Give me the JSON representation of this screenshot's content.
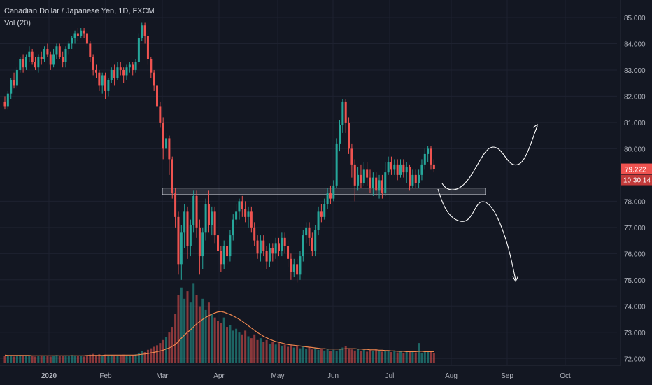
{
  "legend": {
    "symbol_title": "Canadian Dollar / Japanese Yen, 1D, FXCM",
    "volume_label": "Vol (20)"
  },
  "colors": {
    "background": "#131722",
    "up": "#26a69a",
    "down": "#ef5350",
    "volume_ma": "#f0874f",
    "last_price": "#ef5350",
    "grid": "#1e2230",
    "axis_text": "#b2b5be",
    "annotation": "#ffffff"
  },
  "chart_data": {
    "type": "candlestick",
    "x_ticks": [
      "2020",
      "Feb",
      "Mar",
      "Apr",
      "May",
      "Jun",
      "Jul",
      "Aug",
      "Sep",
      "Oct"
    ],
    "y_ticks": [
      "85.000",
      "84.000",
      "83.000",
      "82.000",
      "81.000",
      "80.000",
      "78.000",
      "77.000",
      "76.000",
      "75.000",
      "74.000",
      "73.000",
      "72.000"
    ],
    "ylim": [
      71.9,
      85.4
    ],
    "last_price": "79.222",
    "countdown": "10:30:14",
    "grid": true,
    "support_zone": {
      "low": 78.25,
      "high": 78.5,
      "from": "Mar",
      "to": "Aug"
    },
    "candles": [
      [
        81.8,
        81.6,
        82.0,
        81.5
      ],
      [
        81.6,
        82.1,
        82.2,
        81.5
      ],
      [
        82.1,
        82.6,
        82.7,
        81.9
      ],
      [
        82.6,
        82.4,
        82.9,
        82.3
      ],
      [
        82.4,
        83.0,
        83.1,
        82.3
      ],
      [
        83.0,
        83.4,
        83.5,
        82.9
      ],
      [
        83.4,
        83.1,
        83.6,
        82.9
      ],
      [
        83.1,
        83.5,
        83.6,
        83.0
      ],
      [
        83.5,
        83.7,
        83.9,
        83.3
      ],
      [
        83.7,
        83.3,
        83.8,
        83.2
      ],
      [
        83.3,
        83.1,
        83.5,
        83.0
      ],
      [
        83.1,
        83.5,
        83.6,
        82.9
      ],
      [
        83.5,
        83.4,
        83.7,
        83.2
      ],
      [
        83.4,
        83.8,
        83.9,
        83.3
      ],
      [
        83.8,
        83.6,
        84.0,
        83.5
      ],
      [
        83.6,
        83.2,
        83.7,
        83.0
      ],
      [
        83.2,
        83.6,
        83.8,
        83.1
      ],
      [
        83.6,
        83.9,
        84.0,
        83.4
      ],
      [
        83.9,
        83.5,
        84.0,
        83.4
      ],
      [
        83.5,
        83.3,
        83.7,
        83.1
      ],
      [
        83.3,
        83.8,
        83.9,
        83.1
      ],
      [
        83.8,
        84.0,
        84.1,
        83.6
      ],
      [
        84.0,
        84.2,
        84.3,
        83.8
      ],
      [
        84.2,
        84.4,
        84.5,
        84.0
      ],
      [
        84.4,
        84.3,
        84.6,
        84.1
      ],
      [
        84.3,
        84.5,
        84.6,
        84.2
      ],
      [
        84.5,
        84.4,
        84.6,
        84.2
      ],
      [
        84.4,
        84.0,
        84.5,
        83.9
      ],
      [
        84.0,
        83.5,
        84.1,
        83.3
      ],
      [
        83.5,
        83.0,
        83.6,
        82.8
      ],
      [
        83.0,
        82.9,
        83.2,
        82.7
      ],
      [
        82.9,
        82.4,
        83.0,
        82.2
      ],
      [
        82.4,
        82.8,
        82.9,
        82.1
      ],
      [
        82.8,
        82.2,
        82.9,
        81.9
      ],
      [
        82.2,
        82.6,
        82.7,
        82.0
      ],
      [
        82.6,
        83.0,
        83.1,
        82.5
      ],
      [
        83.0,
        82.7,
        83.2,
        82.4
      ],
      [
        82.7,
        83.1,
        83.3,
        82.6
      ],
      [
        83.1,
        83.0,
        83.3,
        82.8
      ],
      [
        83.0,
        82.8,
        83.1,
        82.5
      ],
      [
        82.8,
        83.1,
        83.2,
        82.6
      ],
      [
        83.1,
        83.2,
        83.3,
        82.9
      ],
      [
        83.2,
        83.0,
        83.3,
        82.8
      ],
      [
        83.0,
        83.3,
        83.4,
        82.9
      ],
      [
        83.3,
        84.2,
        84.4,
        83.2
      ],
      [
        84.2,
        84.7,
        84.8,
        84.1
      ],
      [
        84.7,
        84.3,
        84.8,
        84.0
      ],
      [
        84.3,
        83.4,
        84.4,
        83.2
      ],
      [
        83.4,
        82.9,
        83.5,
        82.7
      ],
      [
        82.9,
        82.4,
        83.0,
        82.2
      ],
      [
        82.4,
        81.6,
        82.5,
        81.4
      ],
      [
        81.6,
        81.0,
        81.8,
        80.8
      ],
      [
        81.0,
        80.0,
        81.2,
        79.6
      ],
      [
        80.0,
        80.4,
        80.6,
        79.7
      ],
      [
        80.4,
        79.6,
        80.5,
        79.0
      ],
      [
        79.6,
        78.3,
        79.7,
        78.1
      ],
      [
        78.3,
        77.4,
        78.5,
        77.0
      ],
      [
        77.4,
        75.6,
        77.6,
        75.2
      ],
      [
        75.6,
        76.8,
        77.1,
        75.0
      ],
      [
        76.8,
        77.6,
        77.9,
        76.2
      ],
      [
        77.6,
        76.3,
        77.8,
        75.8
      ],
      [
        76.3,
        77.1,
        77.3,
        75.9
      ],
      [
        77.1,
        78.2,
        78.4,
        76.8
      ],
      [
        78.2,
        77.0,
        78.4,
        76.6
      ],
      [
        77.0,
        75.9,
        77.3,
        75.2
      ],
      [
        75.9,
        76.8,
        77.0,
        75.4
      ],
      [
        76.8,
        77.9,
        78.1,
        76.5
      ],
      [
        77.9,
        77.1,
        78.4,
        76.8
      ],
      [
        77.1,
        77.6,
        77.8,
        76.7
      ],
      [
        77.6,
        76.7,
        77.8,
        76.4
      ],
      [
        76.7,
        76.1,
        76.9,
        75.8
      ],
      [
        76.1,
        75.6,
        76.3,
        75.3
      ],
      [
        75.6,
        76.3,
        76.5,
        75.4
      ],
      [
        76.3,
        75.9,
        76.5,
        75.6
      ],
      [
        75.9,
        76.7,
        76.9,
        75.7
      ],
      [
        76.7,
        77.3,
        77.5,
        76.5
      ],
      [
        77.3,
        77.6,
        77.9,
        77.1
      ],
      [
        77.6,
        78.0,
        78.1,
        77.3
      ],
      [
        78.0,
        77.7,
        78.2,
        77.4
      ],
      [
        77.7,
        77.4,
        78.0,
        77.2
      ],
      [
        77.4,
        77.6,
        77.8,
        77.0
      ],
      [
        77.6,
        77.0,
        77.8,
        76.8
      ],
      [
        77.0,
        76.5,
        77.2,
        76.3
      ],
      [
        76.5,
        76.0,
        76.7,
        75.8
      ],
      [
        76.0,
        76.5,
        76.7,
        75.7
      ],
      [
        76.5,
        76.1,
        76.7,
        75.9
      ],
      [
        76.1,
        75.7,
        76.3,
        75.4
      ],
      [
        75.7,
        76.2,
        76.4,
        75.5
      ],
      [
        76.2,
        76.0,
        76.4,
        75.7
      ],
      [
        76.0,
        76.4,
        76.6,
        75.8
      ],
      [
        76.4,
        76.1,
        76.6,
        75.9
      ],
      [
        76.1,
        76.6,
        76.8,
        75.9
      ],
      [
        76.6,
        76.3,
        76.8,
        76.0
      ],
      [
        76.3,
        75.8,
        76.5,
        75.5
      ],
      [
        75.8,
        75.3,
        76.0,
        75.0
      ],
      [
        75.3,
        75.6,
        75.8,
        75.1
      ],
      [
        75.6,
        75.2,
        75.8,
        74.9
      ],
      [
        75.2,
        75.9,
        76.1,
        75.0
      ],
      [
        75.9,
        76.7,
        76.9,
        75.7
      ],
      [
        76.7,
        77.0,
        77.2,
        76.4
      ],
      [
        77.0,
        76.6,
        77.2,
        76.3
      ],
      [
        76.6,
        76.1,
        76.8,
        75.9
      ],
      [
        76.1,
        76.9,
        77.1,
        75.9
      ],
      [
        76.9,
        77.6,
        77.8,
        76.7
      ],
      [
        77.6,
        77.4,
        77.9,
        77.2
      ],
      [
        77.4,
        77.9,
        78.1,
        77.3
      ],
      [
        77.9,
        78.3,
        78.5,
        77.7
      ],
      [
        78.3,
        78.1,
        78.6,
        77.9
      ],
      [
        78.1,
        78.6,
        78.8,
        78.0
      ],
      [
        78.6,
        80.2,
        80.4,
        78.5
      ],
      [
        80.2,
        80.9,
        81.1,
        79.9
      ],
      [
        80.9,
        81.8,
        81.9,
        80.6
      ],
      [
        81.8,
        81.0,
        81.9,
        80.6
      ],
      [
        81.0,
        80.0,
        81.2,
        79.8
      ],
      [
        80.0,
        79.4,
        80.2,
        78.9
      ],
      [
        79.4,
        78.6,
        79.6,
        78.0
      ],
      [
        78.6,
        79.0,
        79.3,
        78.4
      ],
      [
        79.0,
        78.7,
        79.4,
        78.5
      ],
      [
        78.7,
        79.2,
        79.5,
        78.6
      ],
      [
        79.2,
        78.9,
        79.5,
        78.6
      ],
      [
        78.9,
        78.5,
        79.2,
        78.3
      ],
      [
        78.5,
        78.9,
        79.1,
        78.2
      ],
      [
        78.9,
        78.4,
        79.1,
        78.2
      ],
      [
        78.4,
        78.8,
        79.0,
        78.1
      ],
      [
        78.8,
        78.3,
        79.0,
        78.1
      ],
      [
        78.3,
        79.1,
        79.5,
        78.2
      ],
      [
        79.1,
        79.5,
        79.7,
        79.0
      ],
      [
        79.5,
        79.2,
        79.7,
        79.0
      ],
      [
        79.2,
        79.4,
        79.6,
        79.0
      ],
      [
        79.4,
        79.0,
        79.6,
        78.8
      ],
      [
        79.0,
        79.4,
        79.6,
        78.9
      ],
      [
        79.4,
        79.1,
        79.6,
        78.9
      ],
      [
        79.1,
        79.3,
        79.5,
        78.7
      ],
      [
        79.3,
        78.6,
        79.4,
        78.4
      ],
      [
        78.6,
        79.0,
        79.2,
        78.5
      ],
      [
        79.0,
        78.7,
        79.2,
        78.5
      ],
      [
        78.7,
        79.0,
        79.2,
        78.5
      ],
      [
        79.0,
        79.4,
        79.6,
        78.8
      ],
      [
        79.4,
        79.8,
        80.0,
        79.2
      ],
      [
        79.8,
        80.0,
        80.1,
        79.5
      ],
      [
        80.0,
        79.4,
        80.1,
        79.2
      ],
      [
        79.4,
        79.22,
        79.6,
        79.1
      ]
    ],
    "volume": [
      1.8,
      1.7,
      1.9,
      1.6,
      1.8,
      2.0,
      1.7,
      1.9,
      1.8,
      1.7,
      1.6,
      1.8,
      1.9,
      1.7,
      1.8,
      1.6,
      1.9,
      2.0,
      1.8,
      1.7,
      1.9,
      1.8,
      2.0,
      1.9,
      1.7,
      1.8,
      1.6,
      1.9,
      2.1,
      2.3,
      2.0,
      2.2,
      1.9,
      2.1,
      1.8,
      2.0,
      1.9,
      1.8,
      2.0,
      2.1,
      1.9,
      1.8,
      2.0,
      2.2,
      2.6,
      3.0,
      2.8,
      3.4,
      3.8,
      4.2,
      4.6,
      5.2,
      6.0,
      6.8,
      8.0,
      9.5,
      13.0,
      18.0,
      20.0,
      17.0,
      19.0,
      16.0,
      21.0,
      18.0,
      15.0,
      17.0,
      14.0,
      16.0,
      13.0,
      12.0,
      11.0,
      10.5,
      12.0,
      9.5,
      10.0,
      8.5,
      9.0,
      8.0,
      7.5,
      8.5,
      7.0,
      6.5,
      7.5,
      6.0,
      6.5,
      5.5,
      6.0,
      5.0,
      5.5,
      4.8,
      5.2,
      4.5,
      4.8,
      4.2,
      4.6,
      4.0,
      4.4,
      3.8,
      4.2,
      3.6,
      4.0,
      3.5,
      3.8,
      3.4,
      3.6,
      3.2,
      3.5,
      3.0,
      3.4,
      3.1,
      3.6,
      4.0,
      4.4,
      3.8,
      3.5,
      3.2,
      3.6,
      3.0,
      3.4,
      2.9,
      3.3,
      3.0,
      3.5,
      3.1,
      2.9,
      3.2,
      3.0,
      2.8,
      3.1,
      2.7,
      3.0,
      2.6,
      2.9,
      2.8,
      3.0,
      2.7,
      5.2,
      2.6,
      2.9,
      3.1,
      2.8,
      2.5
    ],
    "volume_ma": [
      2.0,
      1.9,
      1.9,
      1.9,
      1.9,
      1.9,
      1.9,
      1.9,
      1.9,
      1.8,
      1.8,
      1.8,
      1.8,
      1.8,
      1.8,
      1.8,
      1.8,
      1.8,
      1.8,
      1.8,
      1.8,
      1.8,
      1.8,
      1.8,
      1.8,
      1.8,
      1.8,
      1.9,
      1.9,
      1.9,
      1.9,
      1.9,
      1.9,
      2.0,
      2.0,
      2.0,
      2.0,
      2.0,
      2.0,
      2.0,
      2.0,
      2.0,
      2.0,
      2.0,
      2.1,
      2.2,
      2.3,
      2.4,
      2.6,
      2.7,
      2.9,
      3.1,
      3.3,
      3.6,
      3.9,
      4.3,
      4.8,
      5.6,
      6.5,
      7.3,
      8.1,
      8.7,
      9.5,
      10.3,
      10.9,
      11.5,
      12.0,
      12.5,
      12.9,
      13.2,
      13.5,
      13.6,
      13.4,
      13.1,
      12.8,
      12.4,
      12.0,
      11.5,
      11.0,
      10.4,
      9.8,
      9.2,
      8.6,
      8.0,
      7.5,
      7.0,
      6.6,
      6.2,
      5.9,
      5.6,
      5.4,
      5.2,
      5.0,
      4.8,
      4.7,
      4.6,
      4.5,
      4.4,
      4.3,
      4.2,
      4.1,
      4.0,
      3.9,
      3.8,
      3.7,
      3.7,
      3.6,
      3.6,
      3.6,
      3.6,
      3.6,
      3.6,
      3.7,
      3.7,
      3.7,
      3.7,
      3.6,
      3.6,
      3.5,
      3.5,
      3.4,
      3.4,
      3.4,
      3.3,
      3.3,
      3.2,
      3.2,
      3.1,
      3.1,
      3.0,
      3.0,
      3.0,
      2.9,
      2.9,
      2.9,
      2.9,
      3.0,
      3.0,
      2.9,
      2.9,
      2.9,
      2.9
    ]
  }
}
